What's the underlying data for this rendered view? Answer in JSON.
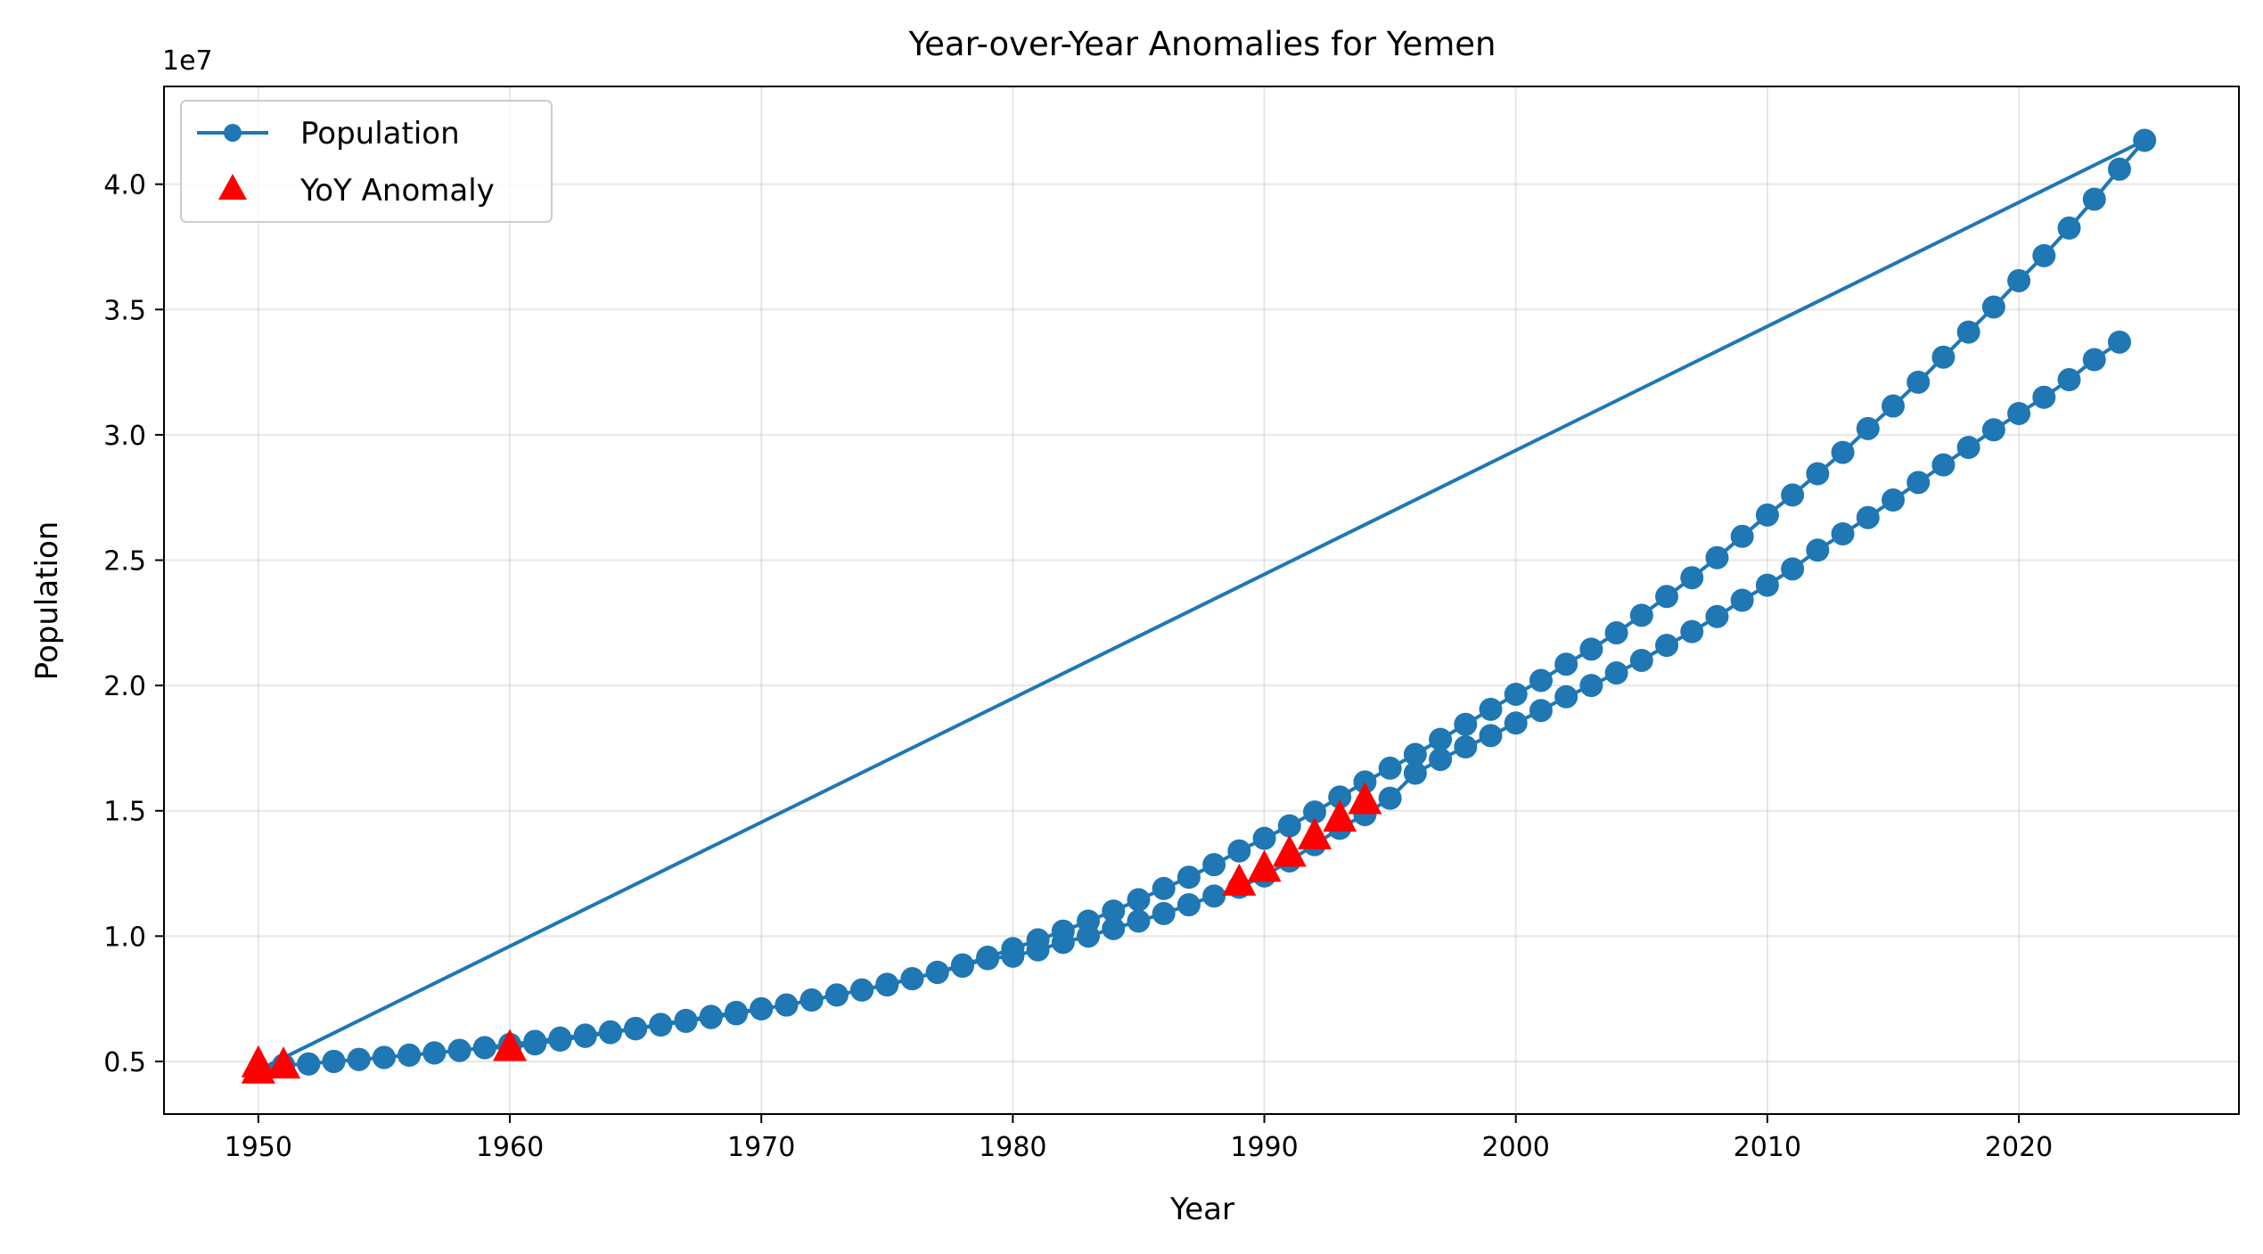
{
  "chart_data": {
    "type": "line",
    "title": "Year-over-Year Anomalies for Yemen",
    "xlabel": "Year",
    "ylabel": "Population",
    "y_offset_label": "1e7",
    "xlim": [
      1946.25,
      2028.75
    ],
    "ylim": [
      2900000.0,
      43900000.0
    ],
    "x_ticks": [
      1950,
      1960,
      1970,
      1980,
      1990,
      2000,
      2010,
      2020
    ],
    "y_ticks": [
      5000000.0,
      10000000.0,
      15000000.0,
      20000000.0,
      25000000.0,
      30000000.0,
      35000000.0,
      40000000.0
    ],
    "y_tick_labels": [
      "0.5",
      "1.0",
      "1.5",
      "2.0",
      "2.5",
      "3.0",
      "3.5",
      "4.0"
    ],
    "grid": true,
    "legend_position": "top-left",
    "colors": {
      "line": "#1f77b4",
      "anomaly": "#ff0000"
    },
    "series": [
      {
        "name": "Population",
        "marker": "circle",
        "x": [
          1950,
          1951,
          1952,
          1953,
          1954,
          1955,
          1956,
          1957,
          1958,
          1959,
          1960,
          1961,
          1962,
          1963,
          1964,
          1965,
          1966,
          1967,
          1968,
          1969,
          1970,
          1971,
          1972,
          1973,
          1974,
          1975,
          1976,
          1977,
          1978,
          1979,
          1980,
          1981,
          1982,
          1983,
          1984,
          1985,
          1986,
          1987,
          1988,
          1989,
          1990,
          1991,
          1992,
          1993,
          1994,
          1995,
          1996,
          1997,
          1998,
          1999,
          2000,
          2001,
          2002,
          2003,
          2004,
          2005,
          2006,
          2007,
          2008,
          2009,
          2010,
          2011,
          2012,
          2013,
          2014,
          2015,
          2016,
          2017,
          2018,
          2019,
          2020,
          2021,
          2022,
          2023,
          2024,
          2025,
          1950,
          1951,
          1952,
          1953,
          1954,
          1955,
          1956,
          1957,
          1958,
          1959,
          1960,
          1961,
          1962,
          1963,
          1964,
          1965,
          1966,
          1967,
          1968,
          1969,
          1970,
          1971,
          1972,
          1973,
          1974,
          1975,
          1976,
          1977,
          1978,
          1979,
          1980,
          1981,
          1982,
          1983,
          1984,
          1985,
          1986,
          1987,
          1988,
          1989,
          1990,
          1991,
          1992,
          1993,
          1994,
          1995,
          1996,
          1997,
          1998,
          1999,
          2000,
          2001,
          2002,
          2003,
          2004,
          2005,
          2006,
          2007,
          2008,
          2009,
          2010,
          2011,
          2012,
          2013,
          2014,
          2015,
          2016,
          2017,
          2018,
          2019,
          2020,
          2021,
          2022,
          2023,
          2024
        ],
        "y": [
          4650000,
          4850000,
          4900000,
          5000000,
          5080000,
          5160000,
          5250000,
          5340000,
          5440000,
          5550000,
          5680000,
          5800000,
          5930000,
          6050000,
          6180000,
          6320000,
          6480000,
          6640000,
          6800000,
          6960000,
          7100000,
          7250000,
          7450000,
          7650000,
          7850000,
          8080000,
          8300000,
          8560000,
          8850000,
          9160000,
          9500000,
          9850000,
          10200000,
          10600000,
          11000000,
          11450000,
          11900000,
          12350000,
          12850000,
          13400000,
          13900000,
          14400000,
          14950000,
          15550000,
          16150000,
          16700000,
          17250000,
          17850000,
          18450000,
          19050000,
          19650000,
          20200000,
          20850000,
          21450000,
          22100000,
          22800000,
          23550000,
          24300000,
          25100000,
          25950000,
          26800000,
          27600000,
          28450000,
          29300000,
          30250000,
          31150000,
          32100000,
          33100000,
          34100000,
          35100000,
          36150000,
          37150000,
          38250000,
          39400000,
          40600000,
          41750000,
          4650000,
          4850000,
          4900000,
          5000000,
          5080000,
          5160000,
          5250000,
          5340000,
          5440000,
          5550000,
          5550000,
          5700000,
          5850000,
          6000000,
          6150000,
          6300000,
          6450000,
          6600000,
          6750000,
          6900000,
          7100000,
          7250000,
          7450000,
          7650000,
          7850000,
          8050000,
          8300000,
          8550000,
          8800000,
          9100000,
          9200000,
          9450000,
          9750000,
          10000000,
          10300000,
          10600000,
          10900000,
          11250000,
          11600000,
          11950000,
          12400000,
          13000000,
          13650000,
          14300000,
          14850000,
          15500000,
          16500000,
          17050000,
          17550000,
          18000000,
          18500000,
          19000000,
          19550000,
          20000000,
          20500000,
          21000000,
          21600000,
          22150000,
          22750000,
          23400000,
          24000000,
          24650000,
          25400000,
          26050000,
          26700000,
          27400000,
          28100000,
          28800000,
          29500000,
          30200000,
          30850000,
          31500000,
          32200000,
          33000000,
          33700000
        ]
      },
      {
        "name": "YoY Anomaly",
        "marker": "triangle",
        "x": [
          1950,
          1950,
          1951,
          1960,
          1989,
          1990,
          1991,
          1992,
          1993,
          1994
        ],
        "y": [
          4900000,
          4650000,
          4850000,
          5550000,
          12150000,
          12700000,
          13300000,
          14000000,
          14700000,
          15400000
        ]
      }
    ]
  }
}
